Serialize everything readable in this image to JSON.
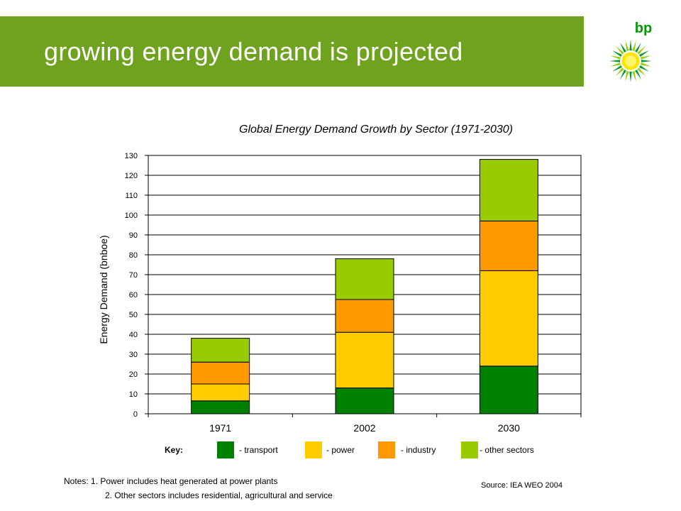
{
  "header": {
    "title": "growing energy demand is projected",
    "bar_color": "#6fa21e",
    "logo_text": "bp"
  },
  "chart_data": {
    "type": "bar",
    "stacked": true,
    "title": "Global Energy Demand Growth by Sector (1971-2030)",
    "xlabel": "",
    "ylabel": "Energy Demand (bnboe)",
    "categories": [
      "1971",
      "2002",
      "2030"
    ],
    "ylim": [
      0,
      130
    ],
    "yticks": [
      0,
      10,
      20,
      30,
      40,
      50,
      60,
      70,
      80,
      90,
      100,
      110,
      120,
      130
    ],
    "grid": true,
    "series": [
      {
        "name": "transport",
        "color": "#008000",
        "values": [
          6.5,
          13,
          24
        ]
      },
      {
        "name": "power",
        "color": "#ffcc00",
        "values": [
          8.5,
          28,
          48
        ]
      },
      {
        "name": "industry",
        "color": "#ff9900",
        "values": [
          11,
          16.5,
          25
        ]
      },
      {
        "name": "other sectors",
        "color": "#99cc00",
        "values": [
          12,
          20.5,
          31
        ]
      }
    ]
  },
  "key": {
    "title": "Key:",
    "items": [
      "- transport",
      "- power",
      "- industry",
      "- other sectors"
    ]
  },
  "notes": {
    "line1": "Notes:  1. Power includes heat generated at power plants",
    "line2": "2. Other sectors includes residential, agricultural and service"
  },
  "source": "Source: IEA WEO 2004"
}
